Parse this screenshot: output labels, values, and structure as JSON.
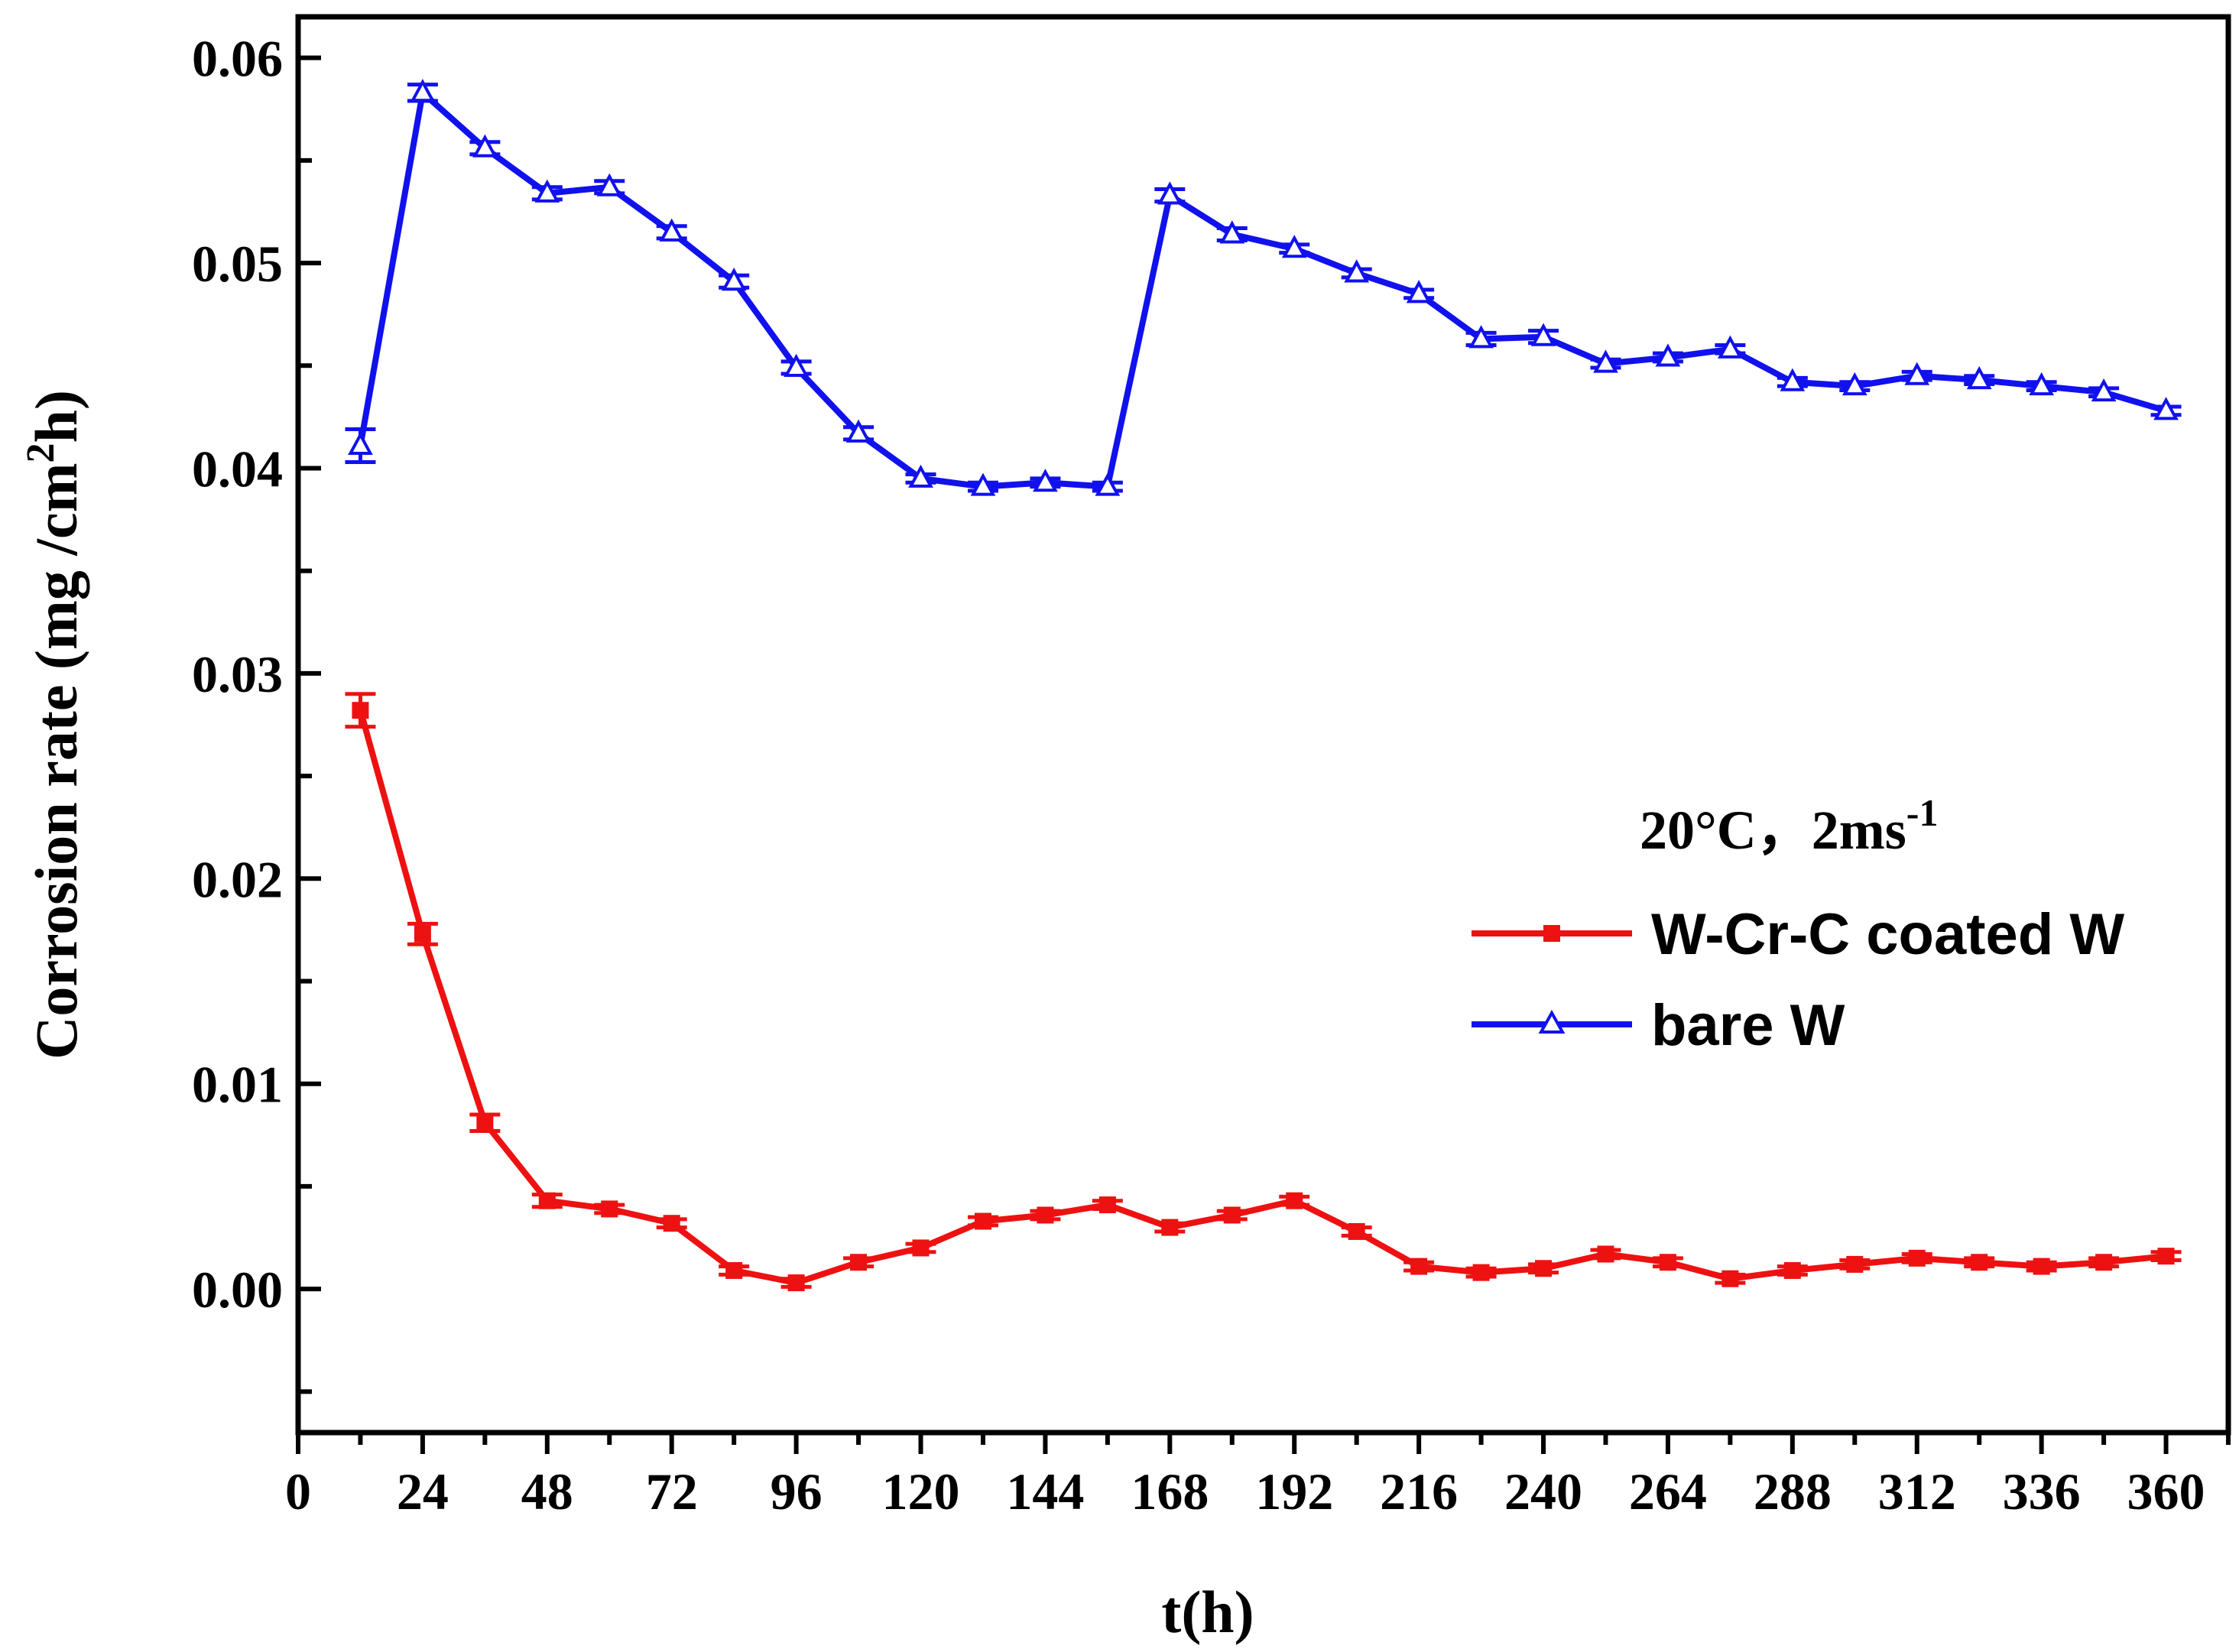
{
  "chart_data": {
    "type": "line",
    "title": "",
    "xlabel": "t(h)",
    "ylabel": "Corrosion rate (mg /cm²h)",
    "ylabel_parts": {
      "main": "Corrosion rate (mg /cm",
      "sup": "2",
      "tail": "h)"
    },
    "xlim": [
      0,
      372
    ],
    "ylim": [
      -0.007,
      0.062
    ],
    "x_ticks": [
      0,
      24,
      48,
      72,
      96,
      120,
      144,
      168,
      192,
      216,
      240,
      264,
      288,
      312,
      336,
      360
    ],
    "x_tick_labels": [
      "0",
      "24",
      "48",
      "72",
      "96",
      "120",
      "144",
      "168",
      "192",
      "216",
      "240",
      "264",
      "288",
      "312",
      "336",
      "360"
    ],
    "y_ticks": [
      0.0,
      0.01,
      0.02,
      0.03,
      0.04,
      0.05,
      0.06
    ],
    "y_tick_labels": [
      "0.00",
      "0.01",
      "0.02",
      "0.03",
      "0.04",
      "0.05",
      "0.06"
    ],
    "annotation": {
      "text": "20°C，2ms",
      "sup": "-1"
    },
    "legend_position": "right-middle",
    "series": [
      {
        "name": "W-Cr-C coated W",
        "color": "#ee1111",
        "marker": "square",
        "x": [
          12,
          24,
          36,
          48,
          60,
          72,
          84,
          96,
          108,
          120,
          132,
          144,
          156,
          168,
          180,
          192,
          204,
          216,
          228,
          240,
          252,
          264,
          276,
          288,
          300,
          312,
          324,
          336,
          348,
          360
        ],
        "y": [
          0.0282,
          0.0173,
          0.0081,
          0.0043,
          0.0039,
          0.0032,
          0.0009,
          0.0003,
          0.0013,
          0.002,
          0.0033,
          0.0036,
          0.0041,
          0.003,
          0.0036,
          0.0043,
          0.0028,
          0.0011,
          0.0008,
          0.001,
          0.0017,
          0.0013,
          0.0005,
          0.0009,
          0.0012,
          0.0015,
          0.0013,
          0.0011,
          0.0013,
          0.0016
        ],
        "err": [
          0.0008,
          0.0005,
          0.0004,
          0.0003,
          0.0002,
          0.0002,
          0.0002,
          0.0002,
          0.0002,
          0.0002,
          0.0002,
          0.0002,
          0.0002,
          0.0002,
          0.0002,
          0.0002,
          0.0002,
          0.0002,
          0.0002,
          0.0002,
          0.0002,
          0.0002,
          0.0002,
          0.0002,
          0.0002,
          0.0002,
          0.0002,
          0.0002,
          0.0002,
          0.0002
        ]
      },
      {
        "name": "bare W",
        "color": "#1111ee",
        "marker": "triangle",
        "x": [
          12,
          24,
          36,
          48,
          60,
          72,
          84,
          96,
          108,
          120,
          132,
          144,
          156,
          168,
          180,
          192,
          204,
          216,
          228,
          240,
          252,
          264,
          276,
          288,
          300,
          312,
          324,
          336,
          348,
          360
        ],
        "y": [
          0.0411,
          0.0583,
          0.0556,
          0.0534,
          0.0537,
          0.0515,
          0.0491,
          0.0449,
          0.0417,
          0.0395,
          0.0391,
          0.0393,
          0.0391,
          0.0533,
          0.0514,
          0.0507,
          0.0495,
          0.0485,
          0.0463,
          0.0464,
          0.0451,
          0.0454,
          0.0458,
          0.0442,
          0.044,
          0.0445,
          0.0443,
          0.044,
          0.0437,
          0.0428
        ],
        "err": [
          0.0008,
          0.0004,
          0.0003,
          0.0003,
          0.0003,
          0.0003,
          0.0003,
          0.0003,
          0.0003,
          0.0002,
          0.0002,
          0.0002,
          0.0002,
          0.0003,
          0.0003,
          0.0002,
          0.0002,
          0.0002,
          0.0003,
          0.0003,
          0.0002,
          0.0002,
          0.0002,
          0.0002,
          0.0002,
          0.0002,
          0.0002,
          0.0002,
          0.0002,
          0.0002
        ]
      }
    ]
  }
}
